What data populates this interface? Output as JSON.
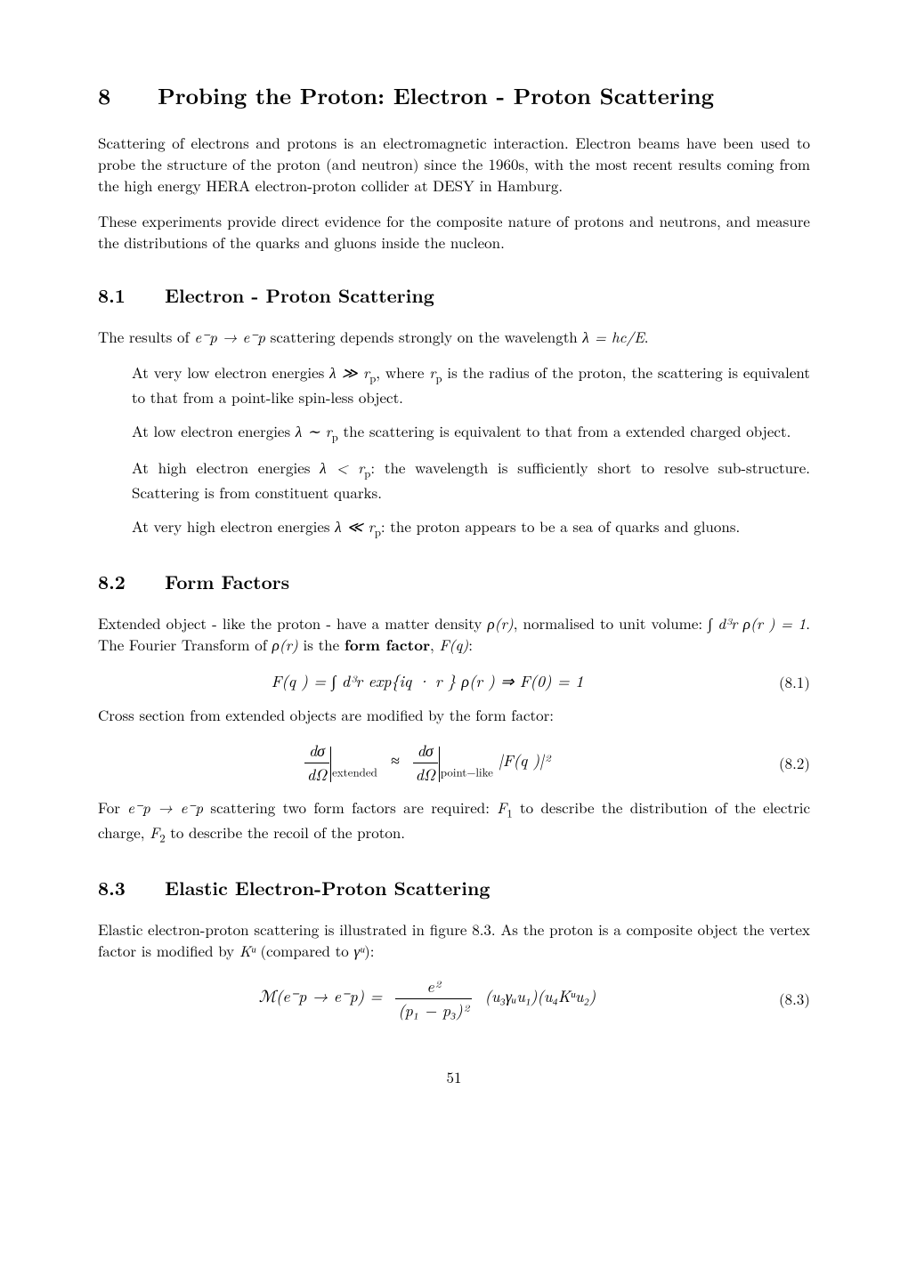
{
  "page_number": "51",
  "title": {
    "num": "8",
    "text": "Probing the Proton: Electron - Proton Scattering"
  },
  "intro_p1": "Scattering of electrons and protons is an electromagnetic interaction. Electron beams have been used to probe the structure of the proton (and neutron) since the 1960s, with the most recent results coming from the high energy HERA electron-proton collider at DESY in Hamburg.",
  "intro_p2": "These experiments provide direct evidence for the composite nature of protons and neutrons, and measure the distributions of the quarks and gluons inside the nucleon.",
  "sec81": {
    "num": "8.1",
    "title": "Electron - Proton Scattering"
  },
  "s81_lead_pre": "The results of ",
  "s81_lead_m1": "e⁻p → e⁻p",
  "s81_lead_mid": " scattering depends strongly on the wavelength ",
  "s81_lead_m2": "λ = hc/E",
  "s81_lead_post": ".",
  "s81_b1_a": "At very low electron energies ",
  "s81_b1_m1": "λ ≫ r",
  "s81_b1_p": "p",
  "s81_b1_b": ", where ",
  "s81_b1_m2": "r",
  "s81_b1_c": " is the radius of the proton, the scattering is equivalent to that from a point-like spin-less object.",
  "s81_b2_a": "At low electron energies ",
  "s81_b2_m": "λ ∼ r",
  "s81_b2_b": " the scattering is equivalent to that from a extended charged object.",
  "s81_b3_a": "At high electron energies ",
  "s81_b3_m": "λ < r",
  "s81_b3_b": ": the wavelength is sufficiently short to resolve sub-structure. Scattering is from constituent quarks.",
  "s81_b4_a": "At very high electron energies ",
  "s81_b4_m": "λ ≪ r",
  "s81_b4_b": ": the proton appears to be a sea of quarks and gluons.",
  "sec82": {
    "num": "8.2",
    "title": "Form Factors"
  },
  "s82_p1_a": "Extended object - like the proton - have a matter density ",
  "s82_p1_m1": "ρ(r)",
  "s82_p1_b": ", normalised to unit volume: ",
  "s82_p1_m2": "∫ d³r⃗ ρ(r⃗ ) = 1",
  "s82_p1_c": ". The Fourier Transform of ",
  "s82_p1_m3": "ρ(r)",
  "s82_p1_d": " is the ",
  "s82_p1_bold": "form factor",
  "s82_p1_e": ", ",
  "s82_p1_m4": "F(q)",
  "s82_p1_f": ":",
  "eq81": "F(q⃗ ) = ∫ d³r⃗  exp{iq⃗ · r⃗ } ρ(r⃗ ) ⇒ F(0) = 1",
  "eq81_num": "(8.1)",
  "s82_p2": "Cross section from extended objects are modified by the form factor:",
  "eq82_sub1": "extended",
  "eq82_sub2": "point−like",
  "eq82_rhs": "|F(q⃗ )|²",
  "eq82_num": "(8.2)",
  "s82_p3_a": "For ",
  "s82_p3_m1": "e⁻p → e⁻p",
  "s82_p3_b": " scattering two form factors are required: ",
  "s82_p3_m2": "F",
  "s82_p3_s1": "1",
  "s82_p3_c": " to describe the distribution of the electric charge, ",
  "s82_p3_m3": "F",
  "s82_p3_s2": "2",
  "s82_p3_d": " to describe the recoil of the proton.",
  "sec83": {
    "num": "8.3",
    "title": "Elastic Electron-Proton Scattering"
  },
  "s83_p1_a": "Elastic electron-proton scattering is illustrated in figure 8.3. As the proton is a composite object the vertex factor is modified by ",
  "s83_p1_m1": "Kᵘ",
  "s83_p1_b": " (compared to ",
  "s83_p1_m2": "γᵘ",
  "s83_p1_c": "):",
  "eq83_lhs": "ℳ(e⁻p → e⁻p) =",
  "eq83_fn": "e²",
  "eq83_fd": "(p₁ − p₃)²",
  "eq83_rhs": "(u₃γᵤu₁)(u₄Kᵘu₂)",
  "eq83_num": "(8.3)",
  "frac_dsigma": "dσ",
  "frac_dOmega": "dΩ",
  "approx": "≈"
}
